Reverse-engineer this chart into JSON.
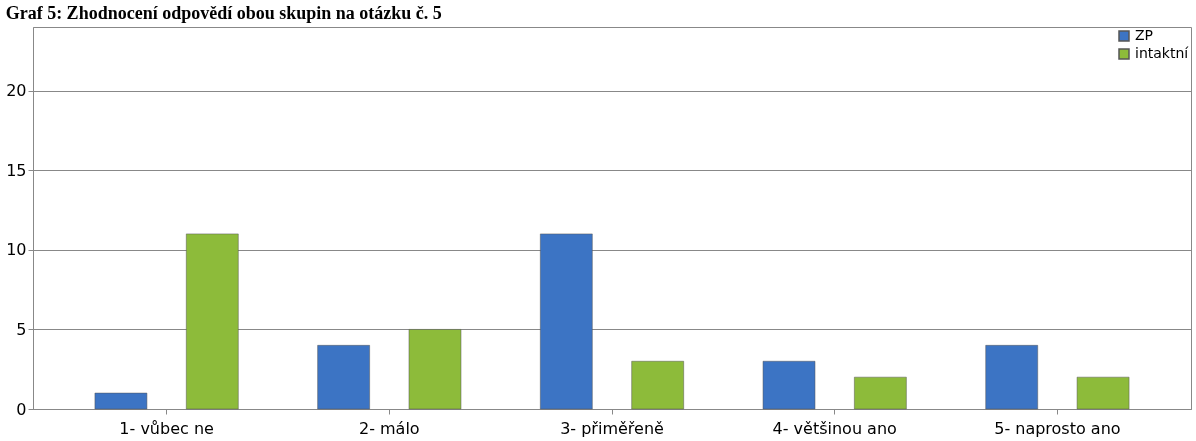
{
  "chart_data": {
    "type": "bar",
    "title": "Graf 5: Zhodnocení odpovědí obou skupin na otázku č. 5",
    "categories": [
      "1- vůbec ne",
      "2- málo",
      "3- přiměřeně",
      "4- většinou ano",
      "5- naprosto ano"
    ],
    "series": [
      {
        "name": "ZP",
        "color": "#3c74c4",
        "values": [
          1,
          4,
          11,
          3,
          4
        ]
      },
      {
        "name": "intaktní",
        "color": "#8dbb3a",
        "values": [
          11,
          5,
          3,
          2,
          2
        ]
      }
    ],
    "ylim": [
      0,
      24
    ],
    "yticks": [
      0,
      5,
      10,
      15,
      20
    ],
    "grid": "y",
    "legend": "top right"
  }
}
